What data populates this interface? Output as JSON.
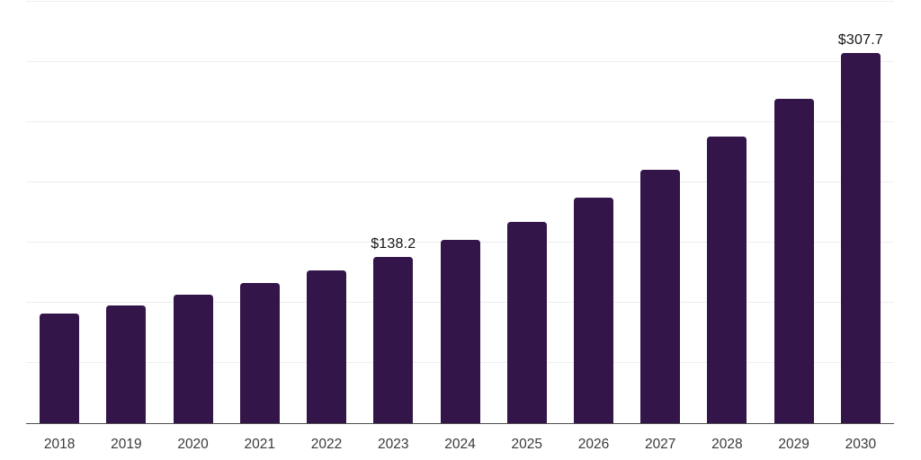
{
  "chart_data": {
    "type": "bar",
    "categories": [
      "2018",
      "2019",
      "2020",
      "2021",
      "2022",
      "2023",
      "2024",
      "2025",
      "2026",
      "2027",
      "2028",
      "2029",
      "2030"
    ],
    "values": [
      90.9,
      97.6,
      106.5,
      116.7,
      126.7,
      138.2,
      152.2,
      167.5,
      187.0,
      210.1,
      237.7,
      269.7,
      307.7
    ],
    "annotations": [
      {
        "category": "2023",
        "text": "$138.2"
      },
      {
        "category": "2030",
        "text": "$307.7"
      }
    ],
    "ylim": [
      0,
      350
    ],
    "gridline_step": 50,
    "grid": "horizontal-only",
    "legend": "none",
    "y_axis_labels_visible": false,
    "colors": {
      "bar": "#341549",
      "gridline": "#eeeeee",
      "axis_line": "#4f4f4f",
      "tick_label": "#3a3a3a",
      "value_label": "#161616",
      "background": "#ffffff"
    }
  }
}
